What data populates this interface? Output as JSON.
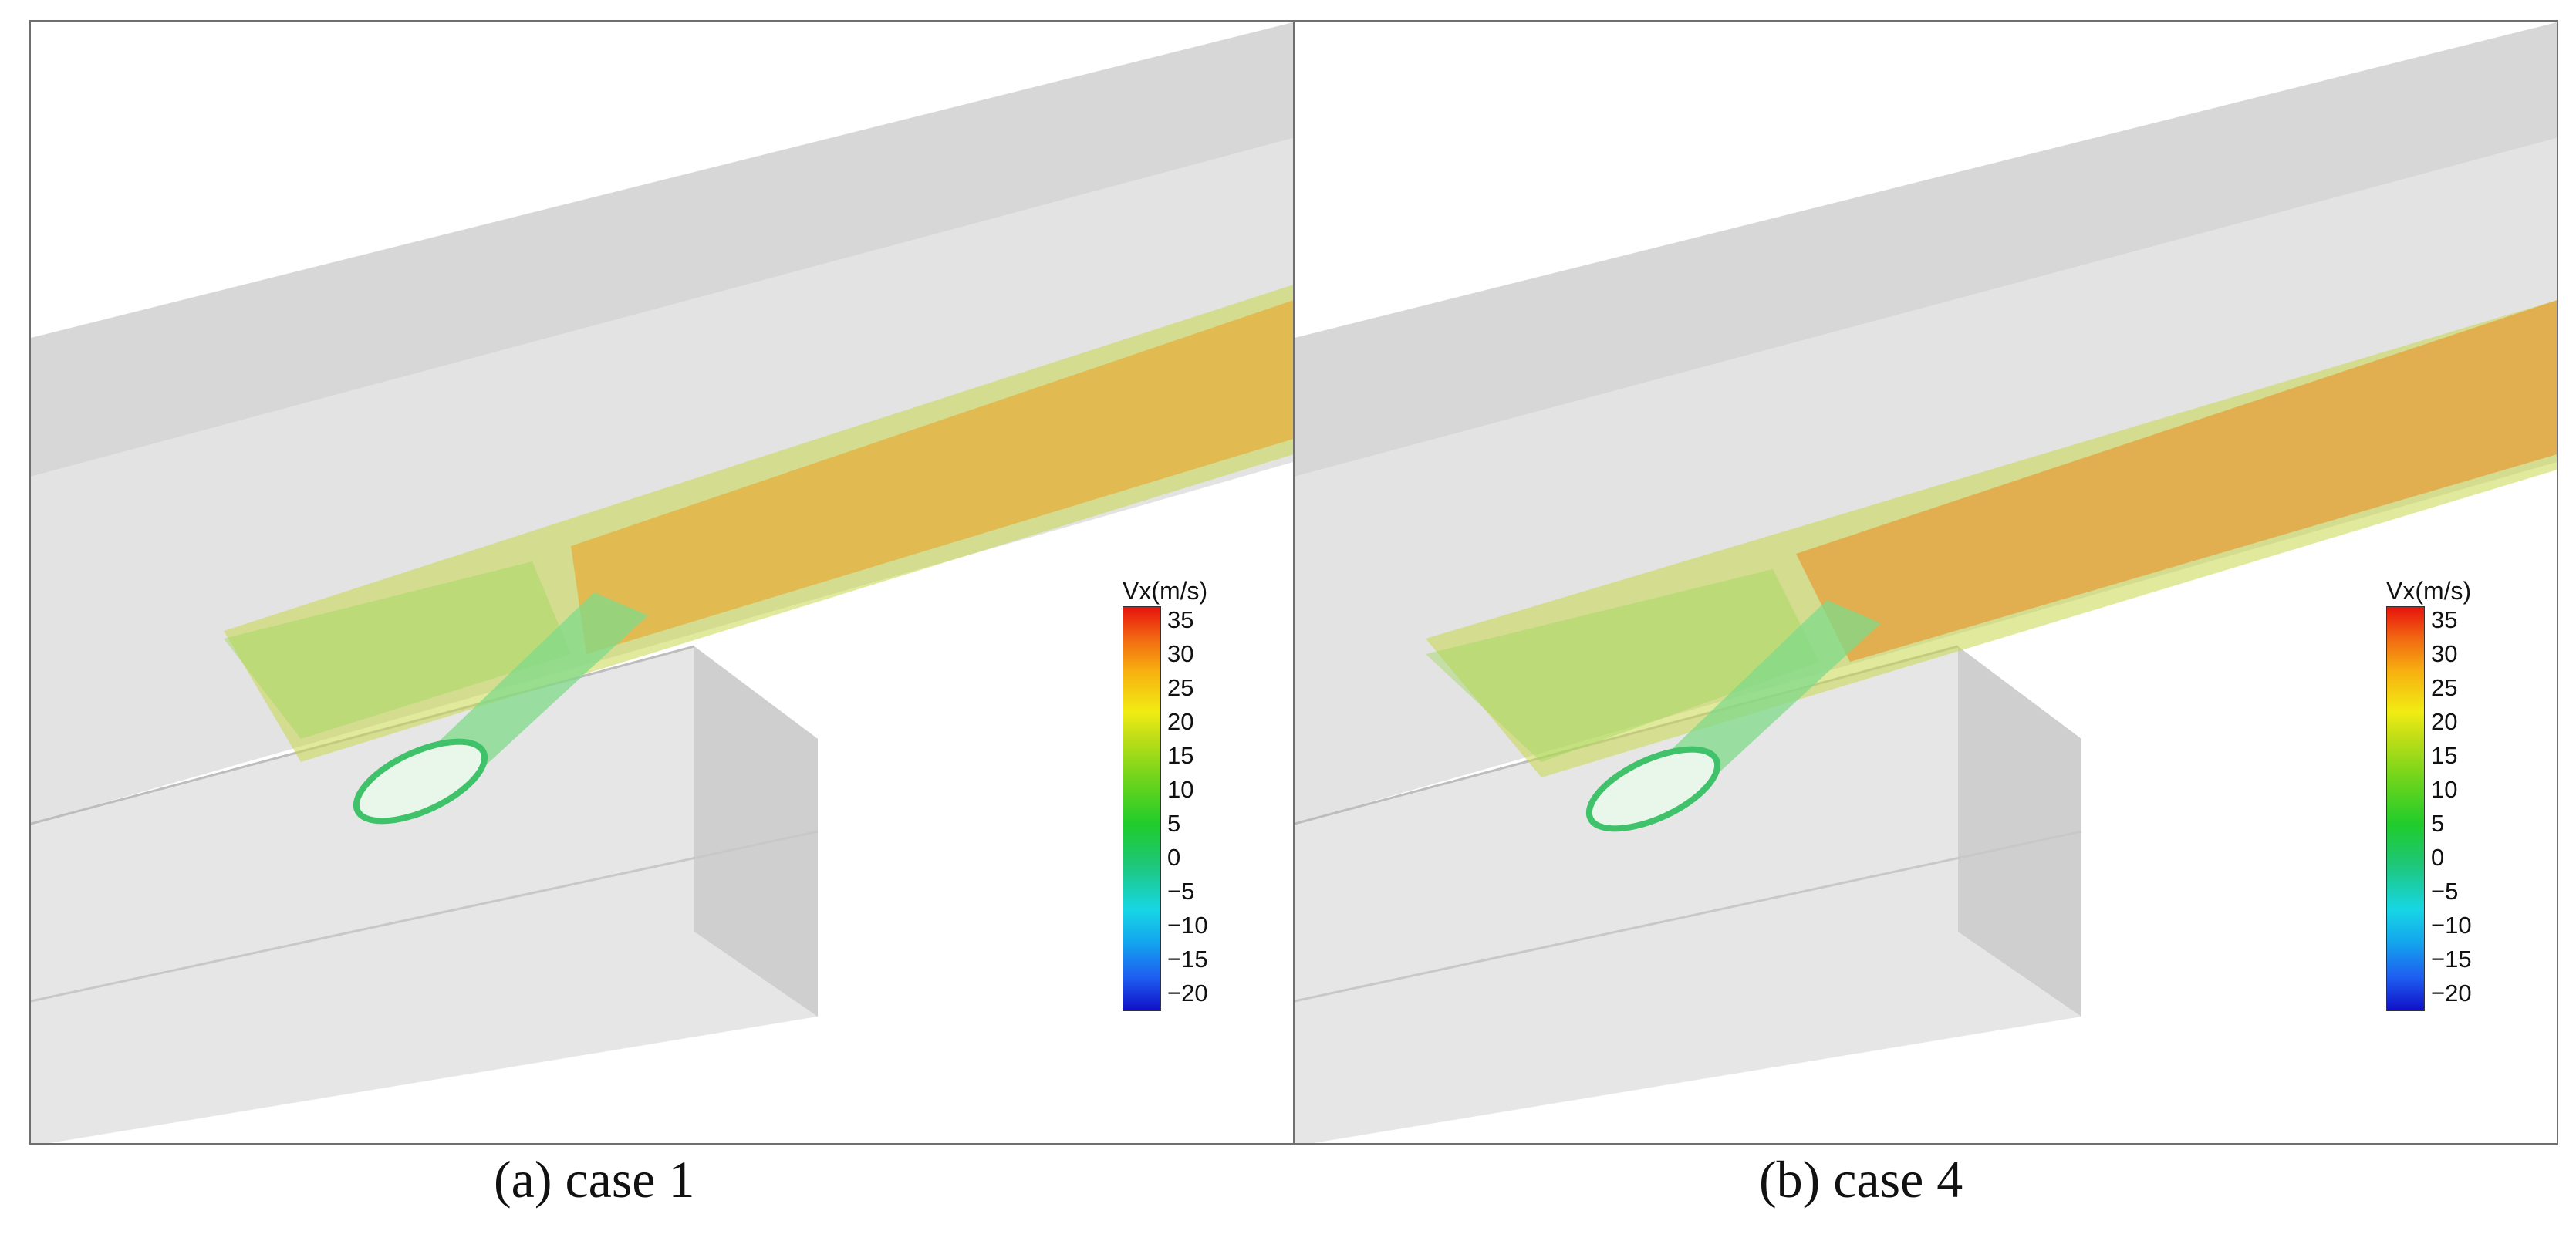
{
  "panels": [
    {
      "caption": "(a) case 1",
      "colorbar": {
        "title": "Vx(m/s)",
        "ticks": [
          "35",
          "30",
          "25",
          "20",
          "15",
          "10",
          "5",
          "0",
          "−5",
          "−10",
          "−15",
          "−20"
        ]
      }
    },
    {
      "caption": "(b) case 4",
      "colorbar": {
        "title": "Vx(m/s)",
        "ticks": [
          "35",
          "30",
          "25",
          "20",
          "15",
          "10",
          "5",
          "0",
          "−5",
          "−10",
          "−15",
          "−20"
        ]
      }
    }
  ],
  "colors": {
    "max": "#e8130d",
    "high": "#f7b010",
    "mid": "#f1ec13",
    "zero": "#1fcc2c",
    "low": "#17d6e4",
    "min": "#1010c8",
    "surface": "#d9d9d9"
  }
}
